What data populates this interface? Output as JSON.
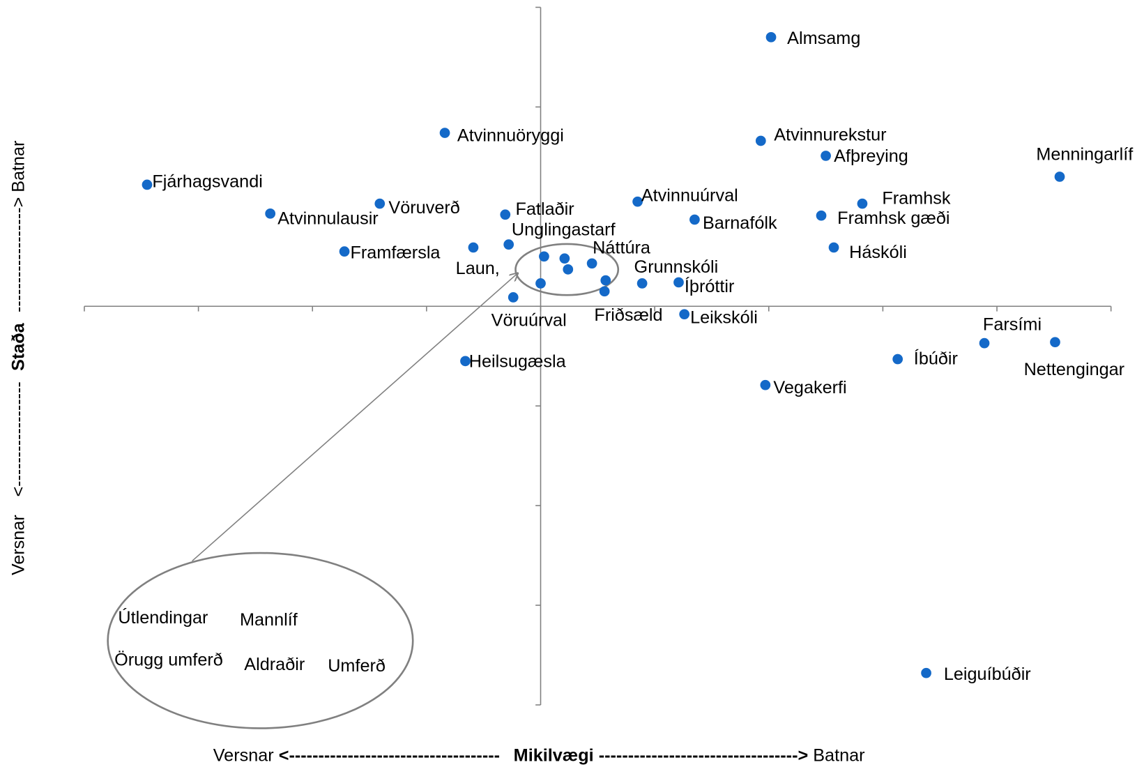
{
  "chart_data": {
    "type": "scatter",
    "color": "#1469c8",
    "xlim": [
      -4,
      5
    ],
    "ylim": [
      -4,
      3
    ],
    "xticks": [
      -4,
      -3,
      -2,
      -1,
      0,
      1,
      2,
      3,
      4,
      5
    ],
    "yticks": [
      -4,
      -3,
      -2,
      -1,
      0,
      1,
      2,
      3
    ],
    "x_axis": {
      "left": "Versnar",
      "left_arrow": "<------------------------------------",
      "label": "Mikilvægi",
      "right_arrow": "---------------------------------->",
      "right": "Batnar"
    },
    "y_axis": {
      "bottom": "Versnar",
      "bottom_arrow": "<------------------",
      "label": "Staða",
      "top_arrow": "------------------>",
      "top": "Batnar"
    },
    "labels": [
      "Almsamg",
      "Atvinnuöryggi",
      "Atvinnurekstur",
      "Afþreying",
      "Menningarlíf",
      "Fjárhagsvandi",
      "Vöruverð",
      "Atvinnulausir",
      "Fatlaðir",
      "Atvinnuúrval",
      "Framhsk",
      "Framhsk gæði",
      "Barnafólk",
      "Unglingastarf",
      "Laun,",
      "Framfærsla",
      "Náttúra",
      "Háskóli",
      "Grunnskóli",
      "Íþróttir",
      "Friðsæld",
      "Vöruúrval",
      "Leikskóli",
      "Heilsugæsla",
      "Vegakerfi",
      "Íbúðir",
      "Farsími",
      "Nettengingar",
      "Leiguíbúðir",
      null,
      null,
      null,
      null,
      null
    ],
    "x": [
      2.02,
      -0.84,
      1.93,
      2.5,
      4.55,
      -3.45,
      -1.41,
      -2.37,
      -0.31,
      0.85,
      2.82,
      2.46,
      1.35,
      -0.28,
      -0.59,
      -1.72,
      0.45,
      2.57,
      0.89,
      1.21,
      0.56,
      -0.24,
      1.26,
      -0.66,
      1.97,
      3.13,
      3.89,
      4.51,
      3.38,
      0.03,
      0.21,
      0.24,
      0.57,
      0.0
    ],
    "y": [
      2.7,
      1.74,
      1.66,
      1.51,
      1.3,
      1.22,
      1.03,
      0.93,
      0.92,
      1.05,
      1.03,
      0.91,
      0.87,
      0.62,
      0.59,
      0.55,
      0.43,
      0.59,
      0.23,
      0.24,
      0.15,
      0.09,
      -0.08,
      -0.55,
      -0.79,
      -0.53,
      -0.37,
      -0.36,
      -3.68,
      0.5,
      0.48,
      0.37,
      0.26,
      0.23
    ],
    "inset_labels": [
      "Útlendingar",
      "Mannlíf",
      "Örugg umferð",
      "Aldraðir",
      "Umferð"
    ]
  }
}
